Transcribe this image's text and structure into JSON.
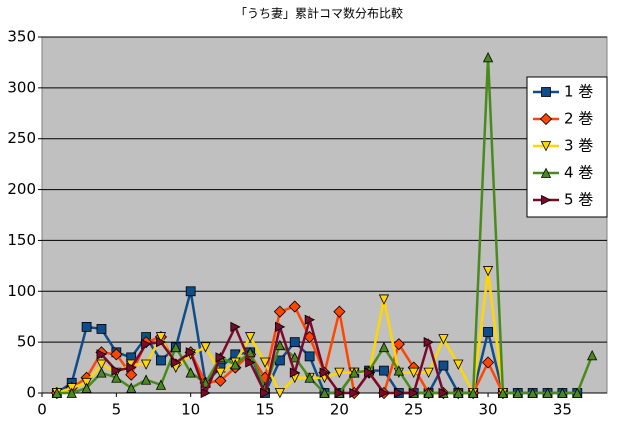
{
  "chart_data": {
    "type": "line",
    "title": "「うち妻」累計コマ数分布比較",
    "x": [
      1,
      2,
      3,
      4,
      5,
      6,
      7,
      8,
      9,
      10,
      11,
      12,
      13,
      14,
      15,
      16,
      17,
      18,
      19,
      20,
      21,
      22,
      23,
      24,
      25,
      26,
      27,
      28,
      29,
      30,
      31,
      32,
      33,
      34,
      35,
      36,
      37
    ],
    "series": [
      {
        "name": "1 巻",
        "color": "#0f4c8a",
        "marker": "square",
        "values": [
          0,
          10,
          65,
          63,
          40,
          35,
          55,
          32,
          45,
          100,
          10,
          25,
          38,
          40,
          0,
          32,
          50,
          36,
          0,
          0,
          20,
          22,
          22,
          0,
          0,
          0,
          27,
          0,
          0,
          60,
          0,
          0,
          0,
          0,
          0,
          0,
          null
        ]
      },
      {
        "name": "2 巻",
        "color": "#ff4500",
        "marker": "diamond",
        "values": [
          0,
          5,
          15,
          40,
          38,
          18,
          50,
          55,
          28,
          40,
          10,
          12,
          25,
          38,
          15,
          80,
          85,
          55,
          20,
          80,
          0,
          20,
          0,
          48,
          25,
          0,
          0,
          0,
          0,
          30,
          0,
          null,
          null,
          null,
          null,
          null,
          null
        ]
      },
      {
        "name": "3 巻",
        "color": "#ffd700",
        "marker": "down",
        "values": [
          0,
          5,
          10,
          28,
          20,
          28,
          28,
          55,
          25,
          38,
          45,
          20,
          30,
          55,
          30,
          0,
          15,
          15,
          15,
          20,
          20,
          20,
          92,
          20,
          20,
          20,
          53,
          28,
          0,
          120,
          0,
          null,
          null,
          null,
          null,
          null,
          null
        ]
      },
      {
        "name": "4 巻",
        "color": "#4a8a1c",
        "marker": "up",
        "values": [
          0,
          0,
          5,
          20,
          15,
          5,
          13,
          8,
          45,
          20,
          10,
          35,
          28,
          40,
          5,
          47,
          35,
          15,
          0,
          0,
          20,
          22,
          45,
          22,
          0,
          0,
          0,
          0,
          0,
          330,
          0,
          0,
          0,
          0,
          0,
          0,
          37
        ]
      },
      {
        "name": "5 巻",
        "color": "#7a0a2a",
        "marker": "right",
        "values": [
          null,
          null,
          null,
          38,
          22,
          25,
          48,
          50,
          30,
          40,
          0,
          35,
          65,
          30,
          0,
          65,
          20,
          72,
          20,
          0,
          0,
          20,
          0,
          0,
          0,
          50,
          0,
          null,
          null,
          null,
          null,
          null,
          null,
          null,
          null,
          null,
          null
        ]
      }
    ],
    "xlim": [
      0,
      38
    ],
    "xticks": [
      0,
      5,
      10,
      15,
      20,
      25,
      30,
      35
    ],
    "ylim": [
      0,
      350
    ],
    "yticks": [
      0,
      50,
      100,
      150,
      200,
      250,
      300,
      350
    ],
    "grid": true,
    "legend": "right"
  }
}
